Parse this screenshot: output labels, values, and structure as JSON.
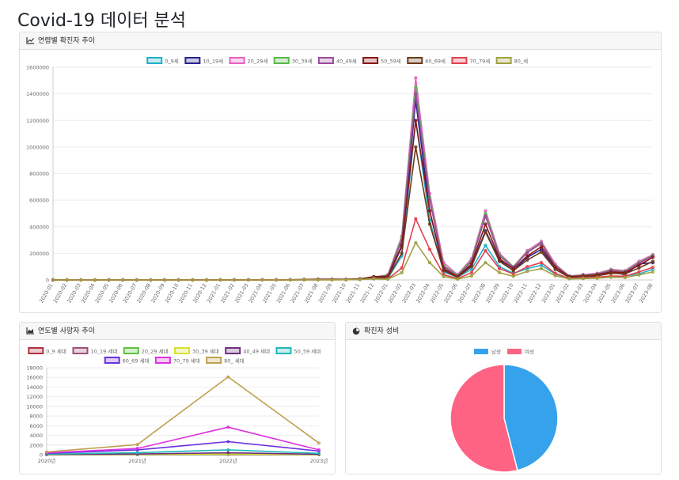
{
  "page": {
    "title": "Covid-19 데이터 분석"
  },
  "cards": {
    "age_cases": {
      "title": "연령별 확진자 추이",
      "icon": "line-chart-icon"
    },
    "yearly_deaths": {
      "title": "연도별 사망자 추이",
      "icon": "area-chart-icon"
    },
    "gender_ratio": {
      "title": "확진자 성비",
      "icon": "pie-chart-icon"
    }
  },
  "chart_data": [
    {
      "id": "age_cases",
      "type": "line",
      "x": [
        "2020-01",
        "2020-02",
        "2020-03",
        "2020-04",
        "2020-05",
        "2020-06",
        "2020-07",
        "2020-08",
        "2020-09",
        "2020-10",
        "2020-11",
        "2020-12",
        "2021-01",
        "2021-02",
        "2021-03",
        "2021-04",
        "2021-05",
        "2021-06",
        "2021-07",
        "2021-08",
        "2021-09",
        "2021-10",
        "2021-11",
        "2021-12",
        "2022-01",
        "2022-02",
        "2022-03",
        "2022-04",
        "2022-05",
        "2022-06",
        "2022-07",
        "2022-08",
        "2022-09",
        "2022-10",
        "2022-11",
        "2022-12",
        "2023-01",
        "2023-02",
        "2023-03",
        "2023-04",
        "2023-05",
        "2023-06",
        "2023-07",
        "2023-08"
      ],
      "ylim": [
        0,
        1600000
      ],
      "yticks": [
        0,
        200000,
        400000,
        600000,
        800000,
        1000000,
        1200000,
        1400000,
        1600000
      ],
      "legend_position": "top",
      "series": [
        {
          "name": "0_9세",
          "color": "#20b0c8",
          "values": [
            0,
            0,
            0,
            0,
            0,
            0,
            0,
            0,
            0,
            0,
            0,
            0,
            500,
            400,
            500,
            600,
            500,
            500,
            1000,
            1500,
            2000,
            2000,
            4000,
            9000,
            12000,
            180000,
            1200000,
            450000,
            60000,
            20000,
            80000,
            260000,
            100000,
            50000,
            85000,
            110000,
            45000,
            12000,
            15000,
            20000,
            25000,
            30000,
            45000,
            80000
          ]
        },
        {
          "name": "10_19세",
          "color": "#2a2290",
          "values": [
            0,
            0,
            0,
            0,
            0,
            0,
            0,
            0,
            0,
            0,
            0,
            0,
            600,
            500,
            600,
            700,
            600,
            600,
            1500,
            2500,
            3000,
            3000,
            5000,
            14000,
            20000,
            250000,
            1350000,
            520000,
            80000,
            22000,
            110000,
            370000,
            150000,
            70000,
            170000,
            230000,
            80000,
            20000,
            40000,
            30000,
            60000,
            40000,
            120000,
            130000
          ]
        },
        {
          "name": "20_29세",
          "color": "#e860c0",
          "values": [
            0,
            0,
            0,
            0,
            0,
            0,
            0,
            0,
            0,
            0,
            0,
            0,
            900,
            700,
            800,
            900,
            900,
            1000,
            4000,
            6000,
            6000,
            5000,
            8000,
            20000,
            40000,
            330000,
            1520000,
            650000,
            130000,
            40000,
            160000,
            520000,
            200000,
            100000,
            220000,
            290000,
            120000,
            30000,
            40000,
            50000,
            80000,
            70000,
            140000,
            190000
          ]
        },
        {
          "name": "30_39세",
          "color": "#5ab84a",
          "values": [
            0,
            0,
            0,
            0,
            0,
            0,
            0,
            0,
            0,
            0,
            0,
            0,
            800,
            700,
            800,
            900,
            900,
            1000,
            3500,
            5000,
            5000,
            4500,
            8000,
            22000,
            35000,
            320000,
            1450000,
            620000,
            110000,
            35000,
            150000,
            500000,
            190000,
            100000,
            210000,
            280000,
            110000,
            30000,
            35000,
            45000,
            75000,
            65000,
            130000,
            185000
          ]
        },
        {
          "name": "40_49세",
          "color": "#9a4aa0",
          "values": [
            0,
            0,
            0,
            0,
            0,
            0,
            0,
            0,
            0,
            0,
            0,
            0,
            800,
            700,
            800,
            900,
            900,
            1000,
            3000,
            4500,
            4500,
            4000,
            8000,
            24000,
            30000,
            300000,
            1400000,
            600000,
            100000,
            30000,
            140000,
            480000,
            180000,
            95000,
            205000,
            275000,
            105000,
            28000,
            32000,
            42000,
            70000,
            60000,
            125000,
            180000
          ]
        },
        {
          "name": "50_59세",
          "color": "#8a1616",
          "values": [
            0,
            0,
            0,
            0,
            0,
            0,
            0,
            0,
            0,
            0,
            0,
            0,
            700,
            600,
            700,
            800,
            800,
            900,
            2500,
            3500,
            3500,
            3500,
            8000,
            25000,
            26000,
            260000,
            1200000,
            520000,
            85000,
            25000,
            120000,
            420000,
            160000,
            85000,
            180000,
            250000,
            95000,
            25000,
            30000,
            38000,
            60000,
            55000,
            110000,
            170000
          ]
        },
        {
          "name": "60_69세",
          "color": "#6a3a1a",
          "values": [
            0,
            0,
            0,
            0,
            0,
            0,
            0,
            0,
            0,
            0,
            0,
            0,
            500,
            400,
            500,
            600,
            600,
            700,
            1500,
            2500,
            2500,
            3000,
            7000,
            22000,
            18000,
            200000,
            1000000,
            420000,
            70000,
            20000,
            100000,
            360000,
            140000,
            70000,
            150000,
            210000,
            80000,
            20000,
            25000,
            30000,
            50000,
            45000,
            90000,
            140000
          ]
        },
        {
          "name": "70_79세",
          "color": "#e24050",
          "values": [
            0,
            0,
            0,
            0,
            0,
            0,
            0,
            0,
            0,
            0,
            0,
            0,
            300,
            200,
            300,
            300,
            300,
            300,
            800,
            1200,
            1200,
            1500,
            4000,
            12000,
            8000,
            90000,
            460000,
            230000,
            40000,
            10000,
            55000,
            220000,
            85000,
            45000,
            100000,
            130000,
            50000,
            12000,
            15000,
            20000,
            30000,
            28000,
            60000,
            95000
          ]
        },
        {
          "name": "80_세",
          "color": "#a0a040",
          "values": [
            0,
            0,
            0,
            0,
            0,
            0,
            0,
            0,
            0,
            0,
            0,
            0,
            200,
            150,
            200,
            200,
            200,
            200,
            500,
            800,
            800,
            1000,
            3000,
            8000,
            5000,
            55000,
            280000,
            130000,
            25000,
            6000,
            30000,
            130000,
            55000,
            28000,
            65000,
            85000,
            32000,
            8000,
            10000,
            13000,
            20000,
            18000,
            38000,
            60000
          ]
        }
      ]
    },
    {
      "id": "yearly_deaths",
      "type": "line",
      "x": [
        "2020년",
        "2021년",
        "2022년",
        "2023년"
      ],
      "ylim": [
        0,
        18000
      ],
      "yticks": [
        0,
        2000,
        4000,
        6000,
        8000,
        10000,
        12000,
        14000,
        16000,
        18000
      ],
      "legend_position": "top",
      "series": [
        {
          "name": "0_9 세대",
          "color": "#b03040",
          "values": [
            0,
            2,
            40,
            5
          ]
        },
        {
          "name": "10_19 세대",
          "color": "#a05078",
          "values": [
            0,
            2,
            10,
            2
          ]
        },
        {
          "name": "20_29 세대",
          "color": "#60c040",
          "values": [
            10,
            30,
            80,
            20
          ]
        },
        {
          "name": "30_39 세대",
          "color": "#d8e030",
          "values": [
            20,
            60,
            160,
            40
          ]
        },
        {
          "name": "40_49 세대",
          "color": "#703080",
          "values": [
            50,
            150,
            400,
            100
          ]
        },
        {
          "name": "50_59 세대",
          "color": "#20b8b8",
          "values": [
            120,
            420,
            1000,
            270
          ]
        },
        {
          "name": "60_69 세대",
          "color": "#6a30e0",
          "values": [
            280,
            1000,
            2700,
            750
          ]
        },
        {
          "name": "70_79 세대",
          "color": "#e030e0",
          "values": [
            380,
            1300,
            5700,
            1000
          ]
        },
        {
          "name": "80_ 세대",
          "color": "#c0a050",
          "values": [
            550,
            2100,
            16100,
            2400
          ]
        }
      ]
    },
    {
      "id": "gender_ratio",
      "type": "pie",
      "categories": [
        "남성",
        "여성"
      ],
      "values": [
        46,
        54
      ],
      "colors": [
        "#36a2eb",
        "#ff6384"
      ],
      "legend_position": "top"
    }
  ]
}
